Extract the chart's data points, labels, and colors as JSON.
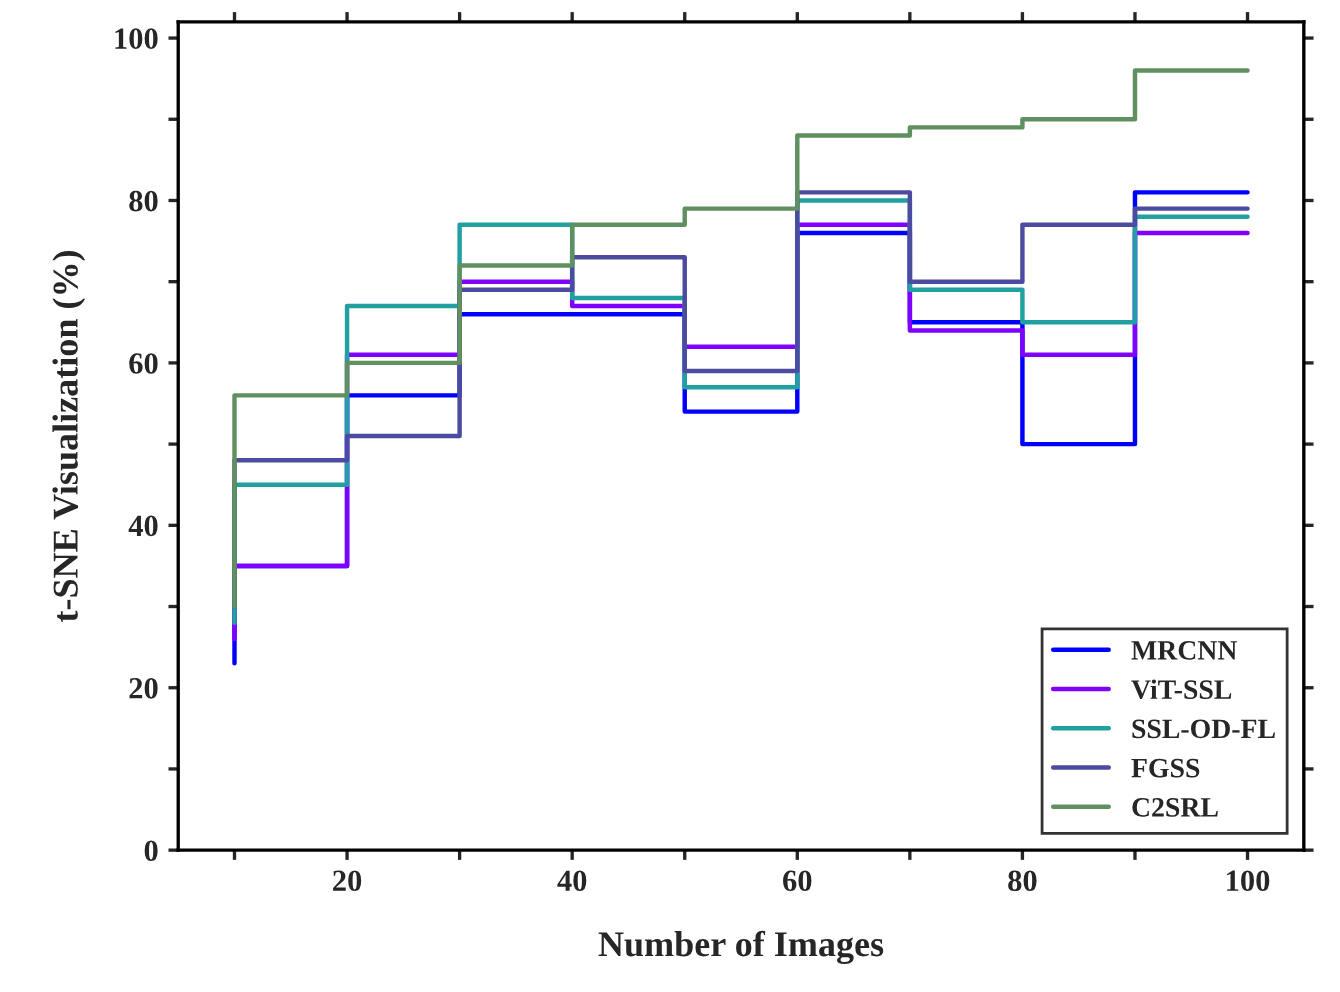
{
  "chart_data": {
    "type": "step",
    "xlabel": "Number of Images",
    "ylabel": "t-SNE Visualization (%)",
    "x": [
      10,
      20,
      30,
      40,
      50,
      60,
      70,
      80,
      90,
      100
    ],
    "series": [
      {
        "name": "MRCNN",
        "color": "#0000ff",
        "values": [
          23,
          35,
          56,
          66,
          66,
          54,
          76,
          65,
          50,
          81
        ]
      },
      {
        "name": "ViT-SSL",
        "color": "#8000ff",
        "values": [
          26,
          35,
          61,
          70,
          67,
          62,
          77,
          64,
          61,
          76
        ]
      },
      {
        "name": "SSL-OD-FL",
        "color": "#20a0a0",
        "values": [
          28,
          45,
          67,
          77,
          68,
          57,
          80,
          69,
          65,
          78
        ]
      },
      {
        "name": "FGSS",
        "color": "#4b4ba0",
        "values": [
          30,
          48,
          51,
          69,
          73,
          59,
          81,
          70,
          77,
          79
        ]
      },
      {
        "name": "C2SRL",
        "color": "#609060",
        "values": [
          30,
          56,
          60,
          72,
          77,
          79,
          88,
          89,
          90,
          96
        ]
      }
    ],
    "xlim": [
      5,
      105
    ],
    "ylim": [
      0,
      102
    ],
    "xticks": [
      {
        "value": 10,
        "label": null
      },
      20,
      {
        "value": 30,
        "label": null
      },
      40,
      {
        "value": 50,
        "label": null
      },
      60,
      {
        "value": 70,
        "label": null
      },
      80,
      {
        "value": 90,
        "label": null
      },
      100
    ],
    "yticks": [
      0,
      {
        "value": 10,
        "label": null
      },
      20,
      {
        "value": 30,
        "label": null
      },
      40,
      {
        "value": 50,
        "label": null
      },
      60,
      {
        "value": 70,
        "label": null
      },
      80,
      {
        "value": 90,
        "label": null
      },
      100
    ],
    "legend": "bottom right",
    "grid": false
  }
}
